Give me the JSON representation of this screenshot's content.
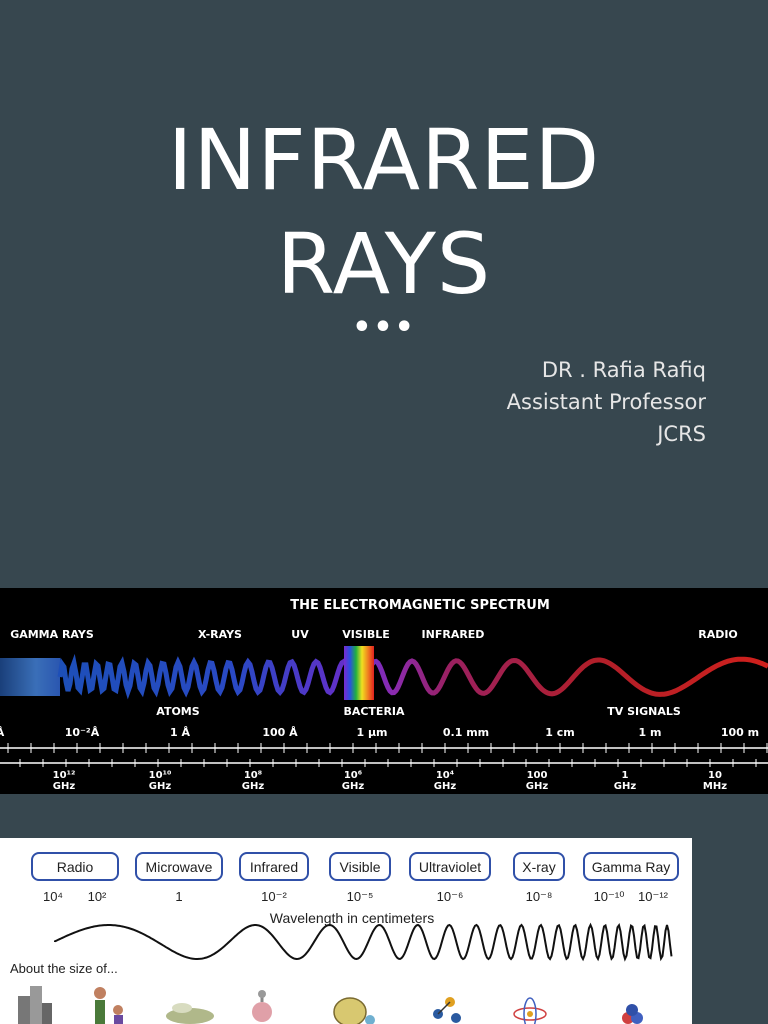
{
  "slide": {
    "title_line1": "INFRARED",
    "title_line2": "RAYS",
    "dots": "•••",
    "author_lines": [
      "DR . Rafia Rafiq",
      "Assistant Professor",
      "JCRS"
    ]
  },
  "spectrum_em": {
    "title": "THE ELECTROMAGNETIC SPECTRUM",
    "bands": [
      "GAMMA RAYS",
      "X-RAYS",
      "UV",
      "VISIBLE",
      "INFRARED",
      "RADIO"
    ],
    "size_labels": [
      "ATOMS",
      "BACTERIA",
      "TV SIGNALS"
    ],
    "wavelengths": [
      "Å",
      "10⁻²Å",
      "1 Å",
      "100 Å",
      "1 μm",
      "0.1 mm",
      "1 cm",
      "1 m",
      "100 m"
    ],
    "frequencies": [
      {
        "value": "10¹²",
        "unit": "GHz"
      },
      {
        "value": "10¹⁰",
        "unit": "GHz"
      },
      {
        "value": "10⁸",
        "unit": "GHz"
      },
      {
        "value": "10⁶",
        "unit": "GHz"
      },
      {
        "value": "10⁴",
        "unit": "GHz"
      },
      {
        "value": "100",
        "unit": "GHz"
      },
      {
        "value": "1",
        "unit": "GHz"
      },
      {
        "value": "10",
        "unit": "MHz"
      }
    ],
    "colors": {
      "violet": "#6a2cc9",
      "red": "#c0201e"
    }
  },
  "spectrum_size": {
    "bands": [
      {
        "label": "Radio",
        "values": [
          "10⁴",
          "10²"
        ]
      },
      {
        "label": "Microwave",
        "values": [
          "1"
        ]
      },
      {
        "label": "Infrared",
        "values": [
          "10⁻²"
        ]
      },
      {
        "label": "Visible",
        "values": [
          "10⁻⁵"
        ]
      },
      {
        "label": "Ultraviolet",
        "values": [
          "10⁻⁶"
        ]
      },
      {
        "label": "X-ray",
        "values": [
          "10⁻⁸"
        ]
      },
      {
        "label": "Gamma Ray",
        "values": [
          "10⁻¹⁰",
          "10⁻¹²"
        ]
      }
    ],
    "wavelength_label": "Wavelength in centimeters",
    "size_label": "About the size of...",
    "icons": [
      "building-icon",
      "person-icon",
      "insect-icon",
      "cell-icon",
      "bacteria-icon",
      "molecule-icon",
      "atom-icon",
      "nucleus-icon"
    ],
    "box_border": "#3050a8"
  }
}
